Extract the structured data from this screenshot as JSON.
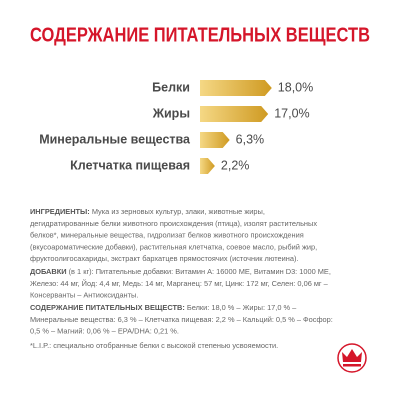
{
  "chart_data": {
    "type": "bar",
    "title": "СОДЕРЖАНИЕ ПИТАТЕЛЬНЫХ ВЕЩЕСТВ",
    "categories": [
      "Белки",
      "Жиры",
      "Минеральные вещества",
      "Клетчатка пищевая"
    ],
    "values": [
      18.0,
      17.0,
      6.3,
      2.2
    ],
    "value_labels": [
      "18,0%",
      "17,0%",
      "6,3%",
      "2,2%"
    ],
    "color": "#e0aa35"
  },
  "ingredients": {
    "label": "ИНГРЕДИЕНТЫ:",
    "lines": [
      " Мука из зерновых культур, злаки, животные жиры,",
      "дегидратированные белки животного происхождения (птица), изолят растительных",
      "белков*, минеральные вещества, гидролизат белков животного происхождения",
      "(вкусоароматические добавки), растительная клетчатка, соевое масло, рыбий жир,",
      "фруктоолигосахариды, экстракт бархатцев прямостоячих (источник лютеина)."
    ]
  },
  "additives": {
    "label": "ДОБАВКИ",
    "lines": [
      " (в 1 кг): Питательные добавки: Витамин А: 16000 МЕ, Витамин D3: 1000 МЕ,",
      "Железо: 44 мг, Йод: 4,4 мг, Медь: 14 мг, Марганец: 57 мг, Цинк: 172 мг, Селен: 0,06 мг –",
      "Консерванты – Антиоксиданты."
    ]
  },
  "nutrients": {
    "label": "СОДЕРЖАНИЕ ПИТАТЕЛЬНЫХ ВЕЩЕСТВ:",
    "lines": [
      " Белки: 18,0 % – Жиры: 17,0 % –",
      "Минеральные вещества: 6,3 % – Клетчатка пищевая: 2,2 % – Кальций: 0,5 % – Фосфор:",
      "0,5 % – Магний: 0,06 % – EPA/DHA: 0,21 %."
    ]
  },
  "footnote": "*L.I.P.: специально отобранные белки с высокой степенью усвояемости."
}
